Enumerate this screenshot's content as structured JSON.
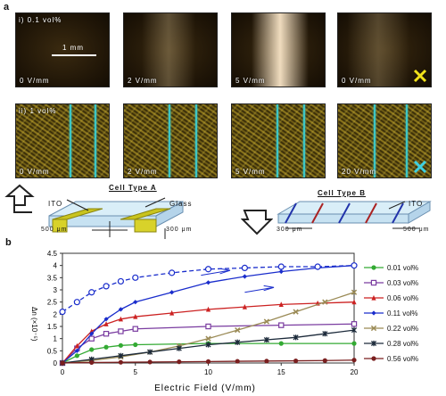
{
  "panel_a_label": "a",
  "panel_b_label": "b",
  "row1": {
    "tag": "i) 0.1 vol%",
    "scale_label": "1 mm",
    "tiles": [
      "0 V/mm",
      "2 V/mm",
      "5 V/mm",
      "0 V/mm"
    ]
  },
  "row2": {
    "tag": "ii) 1 vol%",
    "tiles": [
      "0 V/mm",
      "2 V/mm",
      "5 V/mm",
      "20 V/mm"
    ]
  },
  "cell_a": {
    "title": "Cell Type A",
    "ito": "ITO",
    "glass": "Glass",
    "dim_left": "500 μm",
    "dim_right": "300 μm"
  },
  "cell_b": {
    "title": "Cell Type B",
    "ito": "ITO",
    "dim_left": "300 μm",
    "dim_right": "500 μm"
  },
  "colors": {
    "a": "#1a2dcc",
    "b": "#7a3ca0",
    "c": "#cc2222",
    "d": "#1a2dcc",
    "e": "#9a8a55",
    "f": "#1c2a3a",
    "g": "#7a1f1f",
    "green": "#33aa33"
  },
  "chart_data": {
    "type": "line",
    "xlabel": "Electric Field (V/mm)",
    "ylabel": "Δn (×10⁻⁵)",
    "xlim": [
      0,
      20
    ],
    "ylim": [
      0,
      4.5
    ],
    "xticks": [
      0,
      5,
      10,
      15,
      20
    ],
    "yticks": [
      0,
      0.5,
      1,
      1.5,
      2,
      2.5,
      3,
      3.5,
      4,
      4.5
    ],
    "series": [
      {
        "name": "0.01 vol%",
        "color": "#33aa33",
        "marker": "circle",
        "x": [
          0,
          1,
          2,
          3,
          4,
          5,
          10,
          15,
          20
        ],
        "y": [
          0,
          0.3,
          0.55,
          0.65,
          0.72,
          0.75,
          0.8,
          0.8,
          0.8
        ]
      },
      {
        "name": "0.03 vol%",
        "color": "#7a3ca0",
        "marker": "square",
        "x": [
          0,
          1,
          2,
          3,
          4,
          5,
          10,
          15,
          20
        ],
        "y": [
          0,
          0.6,
          1.0,
          1.2,
          1.3,
          1.4,
          1.5,
          1.55,
          1.6
        ]
      },
      {
        "name": "0.06 vol%",
        "color": "#cc2222",
        "marker": "triangle",
        "x": [
          0,
          1,
          2,
          3,
          4,
          5,
          7.5,
          10,
          12.5,
          15,
          17.5,
          20
        ],
        "y": [
          0,
          0.7,
          1.3,
          1.6,
          1.8,
          1.9,
          2.05,
          2.2,
          2.3,
          2.4,
          2.45,
          2.5
        ]
      },
      {
        "name": "0.11 vol%",
        "color": "#1a2dcc",
        "marker": "diamond",
        "x": [
          0,
          1,
          2,
          3,
          4,
          5,
          7.5,
          10,
          12.5,
          15,
          17.5,
          20
        ],
        "y": [
          0,
          0.5,
          1.2,
          1.8,
          2.2,
          2.5,
          2.9,
          3.3,
          3.55,
          3.75,
          3.9,
          4.0
        ]
      },
      {
        "name": "0.22 vol%",
        "color": "#9a8a55",
        "marker": "cross",
        "x": [
          0,
          2,
          4,
          6,
          8,
          10,
          12,
          14,
          16,
          18,
          20
        ],
        "y": [
          0,
          0.1,
          0.25,
          0.45,
          0.7,
          1.0,
          1.35,
          1.7,
          2.1,
          2.5,
          2.9
        ]
      },
      {
        "name": "0.28 vol%",
        "color": "#1c2a3a",
        "marker": "star",
        "x": [
          0,
          2,
          4,
          6,
          8,
          10,
          12,
          14,
          16,
          18,
          20
        ],
        "y": [
          0,
          0.15,
          0.3,
          0.45,
          0.6,
          0.75,
          0.85,
          0.95,
          1.05,
          1.2,
          1.35
        ]
      },
      {
        "name": "0.56 vol%",
        "color": "#7a1f1f",
        "marker": "circle",
        "x": [
          0,
          2,
          4,
          6,
          8,
          10,
          12,
          14,
          16,
          18,
          20
        ],
        "y": [
          0,
          0.02,
          0.03,
          0.04,
          0.05,
          0.06,
          0.07,
          0.08,
          0.09,
          0.1,
          0.12
        ]
      },
      {
        "name": "0.11 vol% (return)",
        "color": "#1a2dcc",
        "marker": "open-circle",
        "dashed": true,
        "legend": false,
        "x": [
          0,
          1,
          2,
          3,
          4,
          5,
          7.5,
          10,
          12.5,
          15,
          17.5,
          20
        ],
        "y": [
          2.1,
          2.5,
          2.9,
          3.15,
          3.35,
          3.5,
          3.7,
          3.85,
          3.9,
          3.95,
          3.95,
          4.0
        ]
      }
    ]
  }
}
